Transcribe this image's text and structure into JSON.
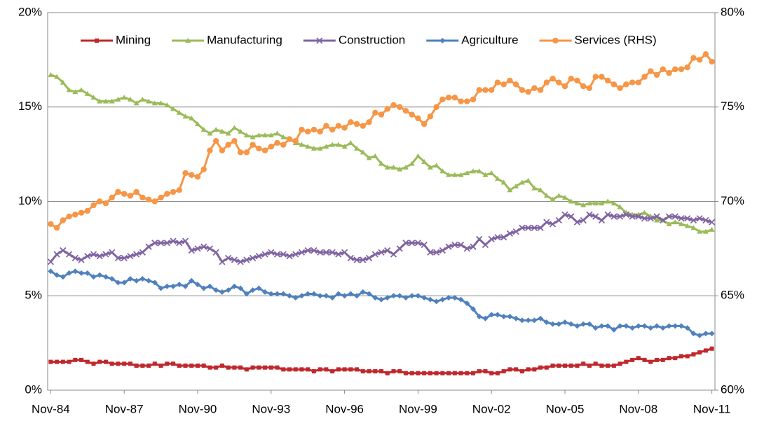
{
  "chart_data": {
    "type": "line",
    "legend": "top",
    "grid": true,
    "categories": [
      "Nov-84",
      null,
      null,
      null,
      null,
      null,
      null,
      null,
      null,
      null,
      null,
      null,
      "Nov-87",
      null,
      null,
      null,
      null,
      null,
      null,
      null,
      null,
      null,
      null,
      null,
      "Nov-90",
      null,
      null,
      null,
      null,
      null,
      null,
      null,
      null,
      null,
      null,
      null,
      "Nov-93",
      null,
      null,
      null,
      null,
      null,
      null,
      null,
      null,
      null,
      null,
      null,
      "Nov-96",
      null,
      null,
      null,
      null,
      null,
      null,
      null,
      null,
      null,
      null,
      null,
      "Nov-99",
      null,
      null,
      null,
      null,
      null,
      null,
      null,
      null,
      null,
      null,
      null,
      "Nov-02",
      null,
      null,
      null,
      null,
      null,
      null,
      null,
      null,
      null,
      null,
      null,
      "Nov-05",
      null,
      null,
      null,
      null,
      null,
      null,
      null,
      null,
      null,
      null,
      null,
      "Nov-08",
      null,
      null,
      null,
      null,
      null,
      null,
      null,
      null,
      null,
      null,
      null,
      "Nov-11"
    ],
    "ylim": [
      0,
      20
    ],
    "yticks": [
      {
        "value": 0,
        "label": "0%"
      },
      {
        "value": 5,
        "label": "5%"
      },
      {
        "value": 10,
        "label": "10%"
      },
      {
        "value": 15,
        "label": "15%"
      },
      {
        "value": 20,
        "label": "20%"
      }
    ],
    "y2lim": [
      60,
      80
    ],
    "y2ticks": [
      {
        "value": 60,
        "label": "60%"
      },
      {
        "value": 65,
        "label": "65%"
      },
      {
        "value": 70,
        "label": "70%"
      },
      {
        "value": 75,
        "label": "75%"
      },
      {
        "value": 80,
        "label": "80%"
      }
    ],
    "series": [
      {
        "name": "Mining",
        "color": "#c0282d",
        "marker": "square",
        "values": [
          1.5,
          1.5,
          1.5,
          1.5,
          1.6,
          1.6,
          1.5,
          1.4,
          1.5,
          1.5,
          1.4,
          1.4,
          1.4,
          1.4,
          1.3,
          1.3,
          1.3,
          1.4,
          1.3,
          1.4,
          1.4,
          1.3,
          1.3,
          1.3,
          1.3,
          1.3,
          1.2,
          1.2,
          1.3,
          1.2,
          1.2,
          1.2,
          1.1,
          1.2,
          1.2,
          1.2,
          1.2,
          1.2,
          1.1,
          1.1,
          1.1,
          1.1,
          1.1,
          1.0,
          1.1,
          1.1,
          1.0,
          1.1,
          1.1,
          1.1,
          1.1,
          1.0,
          1.0,
          1.0,
          1.0,
          0.9,
          1.0,
          1.0,
          0.9,
          0.9,
          0.9,
          0.9,
          0.9,
          0.9,
          0.9,
          0.9,
          0.9,
          0.9,
          0.9,
          0.9,
          1.0,
          1.0,
          0.9,
          0.9,
          1.0,
          1.1,
          1.1,
          1.0,
          1.1,
          1.1,
          1.2,
          1.2,
          1.3,
          1.3,
          1.3,
          1.3,
          1.3,
          1.4,
          1.3,
          1.4,
          1.3,
          1.3,
          1.3,
          1.4,
          1.5,
          1.6,
          1.7,
          1.6,
          1.5,
          1.6,
          1.6,
          1.7,
          1.7,
          1.8,
          1.8,
          1.9,
          2.0,
          2.1,
          2.2
        ]
      },
      {
        "name": "Manufacturing",
        "color": "#9bbb59",
        "marker": "triangle",
        "values": [
          16.7,
          16.6,
          16.3,
          15.9,
          15.8,
          15.9,
          15.7,
          15.5,
          15.3,
          15.3,
          15.3,
          15.4,
          15.5,
          15.4,
          15.2,
          15.4,
          15.3,
          15.2,
          15.2,
          15.1,
          14.9,
          14.7,
          14.5,
          14.4,
          14.1,
          13.8,
          13.6,
          13.8,
          13.7,
          13.6,
          13.9,
          13.7,
          13.5,
          13.4,
          13.5,
          13.5,
          13.5,
          13.6,
          13.4,
          13.3,
          13.1,
          13.0,
          12.9,
          12.8,
          12.8,
          12.9,
          13.0,
          13.0,
          12.9,
          13.1,
          12.8,
          12.6,
          12.3,
          12.4,
          12.0,
          11.8,
          11.8,
          11.7,
          11.8,
          12.0,
          12.4,
          12.1,
          11.8,
          11.9,
          11.6,
          11.4,
          11.4,
          11.4,
          11.5,
          11.6,
          11.6,
          11.4,
          11.5,
          11.2,
          11.0,
          10.6,
          10.8,
          11.0,
          11.1,
          10.7,
          10.6,
          10.3,
          10.1,
          10.3,
          10.2,
          10.0,
          9.9,
          9.8,
          9.9,
          9.9,
          9.9,
          10.0,
          9.9,
          9.7,
          9.4,
          9.3,
          9.3,
          9.4,
          9.2,
          9.0,
          9.0,
          8.8,
          8.9,
          8.8,
          8.7,
          8.6,
          8.4,
          8.4,
          8.5
        ]
      },
      {
        "name": "Construction",
        "color": "#8064a2",
        "marker": "cross",
        "values": [
          6.8,
          7.2,
          7.4,
          7.2,
          7.0,
          6.9,
          7.1,
          7.2,
          7.1,
          7.2,
          7.3,
          7.0,
          7.0,
          7.1,
          7.2,
          7.3,
          7.6,
          7.8,
          7.8,
          7.8,
          7.9,
          7.8,
          7.9,
          7.4,
          7.5,
          7.6,
          7.5,
          7.3,
          6.8,
          7.0,
          6.9,
          6.8,
          6.9,
          7.0,
          7.1,
          7.2,
          7.3,
          7.2,
          7.2,
          7.1,
          7.2,
          7.3,
          7.4,
          7.4,
          7.3,
          7.3,
          7.3,
          7.2,
          7.3,
          7.0,
          6.9,
          6.9,
          7.0,
          7.2,
          7.3,
          7.4,
          7.2,
          7.5,
          7.8,
          7.8,
          7.8,
          7.7,
          7.3,
          7.3,
          7.4,
          7.6,
          7.7,
          7.7,
          7.5,
          7.6,
          8.0,
          7.7,
          8.0,
          8.1,
          8.1,
          8.3,
          8.4,
          8.6,
          8.6,
          8.6,
          8.6,
          8.9,
          8.8,
          9.0,
          9.3,
          9.2,
          8.9,
          9.0,
          9.3,
          9.2,
          9.0,
          9.3,
          9.2,
          9.2,
          9.3,
          9.2,
          9.2,
          9.1,
          9.1,
          9.2,
          9.0,
          9.2,
          9.2,
          9.1,
          9.1,
          9.0,
          9.1,
          9.0,
          8.9
        ]
      },
      {
        "name": "Agriculture",
        "color": "#4f81bd",
        "marker": "diamond",
        "values": [
          6.3,
          6.1,
          6.0,
          6.2,
          6.3,
          6.2,
          6.2,
          6.0,
          6.1,
          6.0,
          5.9,
          5.7,
          5.7,
          5.9,
          5.8,
          5.9,
          5.8,
          5.7,
          5.4,
          5.5,
          5.5,
          5.6,
          5.5,
          5.8,
          5.6,
          5.4,
          5.5,
          5.3,
          5.2,
          5.3,
          5.5,
          5.4,
          5.1,
          5.3,
          5.4,
          5.2,
          5.1,
          5.1,
          5.1,
          5.0,
          4.9,
          5.0,
          5.1,
          5.1,
          5.0,
          5.0,
          4.9,
          5.1,
          5.0,
          5.1,
          5.0,
          5.2,
          5.1,
          4.9,
          4.8,
          4.9,
          5.0,
          5.0,
          4.9,
          5.0,
          5.0,
          4.9,
          4.8,
          4.7,
          4.8,
          4.9,
          4.9,
          4.8,
          4.6,
          4.3,
          3.9,
          3.8,
          4.0,
          4.0,
          3.9,
          3.9,
          3.8,
          3.7,
          3.7,
          3.7,
          3.8,
          3.6,
          3.5,
          3.5,
          3.6,
          3.5,
          3.4,
          3.5,
          3.5,
          3.3,
          3.4,
          3.4,
          3.2,
          3.4,
          3.4,
          3.3,
          3.4,
          3.4,
          3.3,
          3.4,
          3.3,
          3.4,
          3.4,
          3.4,
          3.3,
          3.0,
          2.9,
          3.0,
          3.0
        ]
      },
      {
        "name": "Services (RHS)",
        "color": "#f79646",
        "marker": "circle",
        "axis": "y2",
        "values": [
          68.8,
          68.6,
          69.0,
          69.2,
          69.3,
          69.4,
          69.5,
          69.8,
          70.0,
          69.9,
          70.2,
          70.5,
          70.4,
          70.3,
          70.5,
          70.2,
          70.1,
          70.0,
          70.2,
          70.4,
          70.5,
          70.6,
          71.5,
          71.4,
          71.3,
          71.7,
          72.7,
          73.2,
          72.7,
          73.0,
          73.2,
          72.6,
          72.6,
          73.0,
          72.8,
          72.7,
          72.9,
          73.1,
          73.0,
          73.3,
          73.2,
          73.8,
          73.7,
          73.8,
          73.7,
          74.0,
          73.8,
          74.0,
          73.9,
          74.2,
          74.1,
          74.0,
          74.2,
          74.7,
          74.6,
          74.9,
          75.1,
          75.0,
          74.8,
          74.6,
          74.4,
          74.1,
          74.5,
          75.0,
          75.4,
          75.5,
          75.5,
          75.3,
          75.3,
          75.4,
          75.9,
          75.9,
          75.9,
          76.3,
          76.2,
          76.4,
          76.2,
          75.9,
          75.8,
          76.0,
          75.9,
          76.3,
          76.5,
          76.3,
          76.1,
          76.5,
          76.4,
          76.1,
          76.0,
          76.6,
          76.6,
          76.4,
          76.2,
          76.0,
          76.2,
          76.3,
          76.3,
          76.6,
          76.9,
          76.7,
          77.0,
          76.8,
          77.0,
          77.0,
          77.1,
          77.6,
          77.5,
          77.8,
          77.4
        ]
      }
    ]
  }
}
